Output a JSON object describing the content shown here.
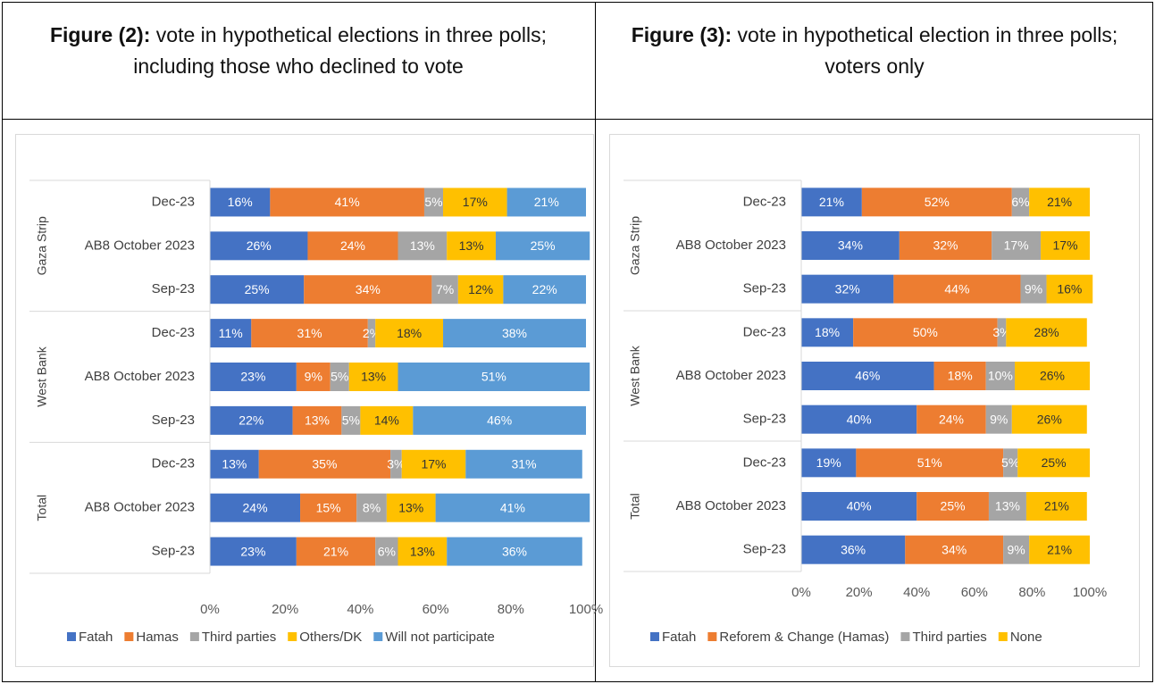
{
  "headers": [
    {
      "label": "Figure (2):",
      "text": "vote in hypothetical elections in three polls; including those who declined to vote"
    },
    {
      "label": "Figure (3):",
      "text": "vote in hypothetical election in three polls; voters only"
    }
  ],
  "chart_data": [
    {
      "type": "stacked-bar-horizontal",
      "groups": [
        {
          "label": "Gaza Strip",
          "categories": [
            "Dec-23",
            "AB8 October 2023",
            "Sep-23"
          ]
        },
        {
          "label": "West Bank",
          "categories": [
            "Dec-23",
            "AB8 October 2023",
            "Sep-23"
          ]
        },
        {
          "label": "Total",
          "categories": [
            "Dec-23",
            "AB8 October 2023",
            "Sep-23"
          ]
        }
      ],
      "series": [
        {
          "name": "Fatah",
          "color": "#4472c4",
          "values": [
            16,
            26,
            25,
            11,
            23,
            22,
            13,
            24,
            23
          ],
          "value_labels": [
            "16%",
            "26%",
            "25%",
            "11%",
            "23%",
            "22%",
            "13%",
            "24%",
            "23%"
          ]
        },
        {
          "name": "Hamas",
          "color": "#ed7d31",
          "values": [
            41,
            24,
            34,
            31,
            9,
            13,
            35,
            15,
            21
          ],
          "value_labels": [
            "41%",
            "24%",
            "34%",
            "31%",
            "9%",
            "13%",
            "35%",
            "15%",
            "21%"
          ]
        },
        {
          "name": "Third parties",
          "color": "#a5a5a5",
          "values": [
            5,
            13,
            7,
            2,
            5,
            5,
            3,
            8,
            6
          ],
          "value_labels": [
            "5%",
            "13%",
            "7%",
            "2%",
            "5%",
            "5%",
            "3%",
            "8%",
            "6%"
          ]
        },
        {
          "name": "Others/DK",
          "color": "#ffc000",
          "values": [
            17,
            13,
            12,
            18,
            13,
            14,
            17,
            13,
            13
          ],
          "value_labels": [
            "17%",
            "13%",
            "12%",
            "18%",
            "13%",
            "14%",
            "17%",
            "13%",
            "13%"
          ]
        },
        {
          "name": "Will not participate",
          "color": "#5b9bd5",
          "values": [
            21,
            25,
            22,
            38,
            51,
            46,
            31,
            41,
            36
          ],
          "value_labels": [
            "21%",
            "25%",
            "22%",
            "38%",
            "51%",
            "46%",
            "31%",
            "41%",
            "36%"
          ]
        }
      ],
      "xlim": [
        0,
        100
      ],
      "xticks": [
        {
          "value": 0,
          "label": "0%"
        },
        {
          "value": 20,
          "label": "20%"
        },
        {
          "value": 40,
          "label": "40%"
        },
        {
          "value": 60,
          "label": "60%"
        },
        {
          "value": 80,
          "label": "80%"
        },
        {
          "value": 100,
          "label": "100%"
        }
      ],
      "legend": "bottom"
    },
    {
      "type": "stacked-bar-horizontal",
      "groups": [
        {
          "label": "Gaza Strip",
          "categories": [
            "Dec-23",
            "AB8 October 2023",
            "Sep-23"
          ]
        },
        {
          "label": "West Bank",
          "categories": [
            "Dec-23",
            "AB8 October 2023",
            "Sep-23"
          ]
        },
        {
          "label": "Total",
          "categories": [
            "Dec-23",
            "AB8 October 2023",
            "Sep-23"
          ]
        }
      ],
      "series": [
        {
          "name": "Fatah",
          "color": "#4472c4",
          "values": [
            21,
            34,
            32,
            18,
            46,
            40,
            19,
            40,
            36
          ],
          "value_labels": [
            "21%",
            "34%",
            "32%",
            "18%",
            "46%",
            "40%",
            "19%",
            "40%",
            "36%"
          ]
        },
        {
          "name": "Reforem & Change (Hamas)",
          "color": "#ed7d31",
          "values": [
            52,
            32,
            44,
            50,
            18,
            24,
            51,
            25,
            34
          ],
          "value_labels": [
            "52%",
            "32%",
            "44%",
            "50%",
            "18%",
            "24%",
            "51%",
            "25%",
            "34%"
          ]
        },
        {
          "name": "Third parties",
          "color": "#a5a5a5",
          "values": [
            6,
            17,
            9,
            3,
            10,
            9,
            5,
            13,
            9
          ],
          "value_labels": [
            "6%",
            "17%",
            "9%",
            "3%",
            "10%",
            "9%",
            "5%",
            "13%",
            "9%"
          ]
        },
        {
          "name": "None",
          "color": "#ffc000",
          "values": [
            21,
            17,
            16,
            28,
            26,
            26,
            25,
            21,
            21
          ],
          "value_labels": [
            "21%",
            "17%",
            "16%",
            "28%",
            "26%",
            "26%",
            "25%",
            "21%",
            "21%"
          ]
        }
      ],
      "xlim": [
        0,
        100
      ],
      "xticks": [
        {
          "value": 0,
          "label": "0%"
        },
        {
          "value": 20,
          "label": "20%"
        },
        {
          "value": 40,
          "label": "40%"
        },
        {
          "value": 60,
          "label": "60%"
        },
        {
          "value": 80,
          "label": "80%"
        },
        {
          "value": 100,
          "label": "100%"
        }
      ],
      "legend": "bottom"
    }
  ]
}
